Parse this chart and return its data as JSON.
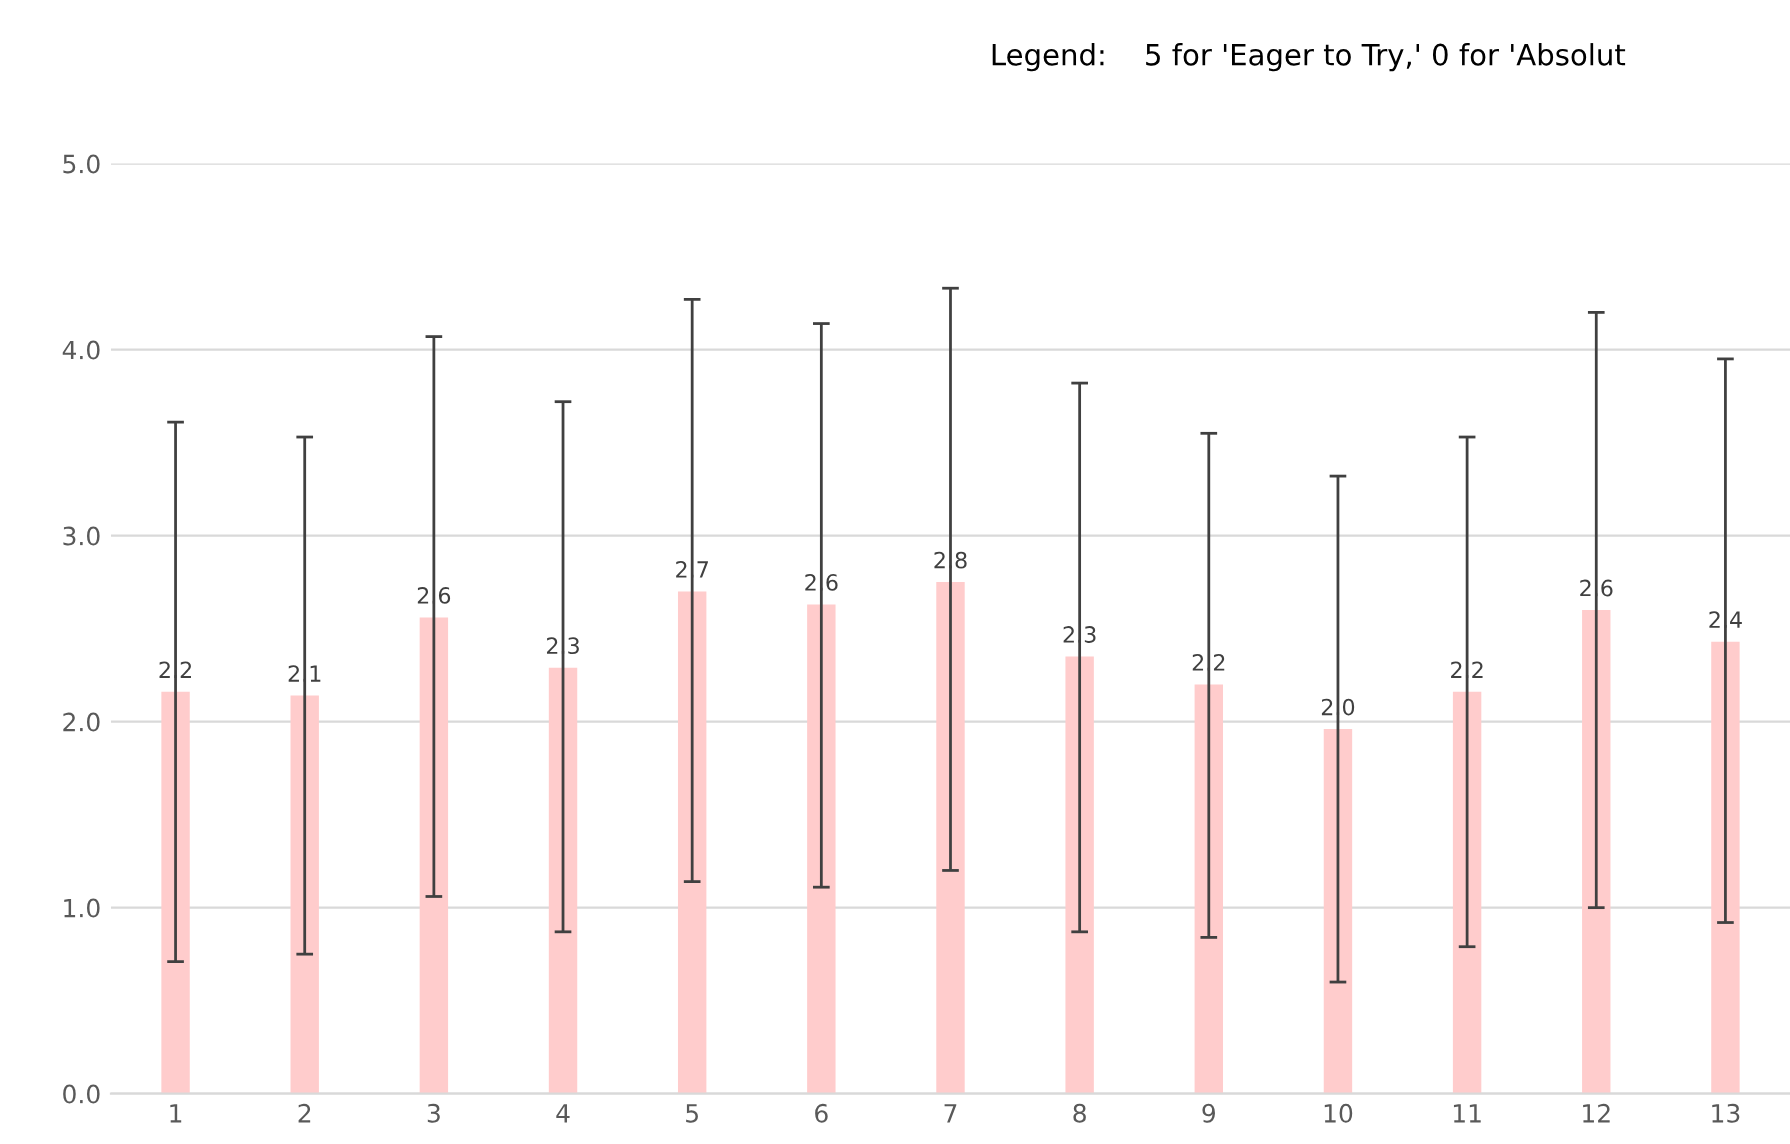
{
  "chart_data": {
    "type": "bar",
    "title": "Legend:    5 for 'Eager to Try,' 0 for 'Absolut",
    "categories": [
      "1",
      "2",
      "3",
      "4",
      "5",
      "6",
      "7",
      "8",
      "9",
      "10",
      "11",
      "12",
      "13"
    ],
    "values": [
      2.16,
      2.14,
      2.56,
      2.29,
      2.7,
      2.63,
      2.75,
      2.35,
      2.2,
      1.96,
      2.16,
      2.6,
      2.43
    ],
    "errors": [
      [
        0.71,
        3.61
      ],
      [
        0.75,
        3.53
      ],
      [
        1.06,
        4.07
      ],
      [
        0.87,
        3.72
      ],
      [
        1.14,
        4.27
      ],
      [
        1.11,
        4.14
      ],
      [
        1.2,
        4.33
      ],
      [
        0.87,
        3.82
      ],
      [
        0.84,
        3.55
      ],
      [
        0.6,
        3.32
      ],
      [
        0.79,
        3.53
      ],
      [
        1.0,
        4.2
      ],
      [
        0.92,
        3.95
      ]
    ],
    "value_labels": [
      "2.2",
      "2.1",
      "2.6",
      "2.3",
      "2.7",
      "2.6",
      "2.8",
      "2.3",
      "2.2",
      "2.0",
      "2.2",
      "2.6",
      "2.4"
    ],
    "color": "#ffcccc",
    "ylim": [
      0,
      5
    ],
    "yticks": [
      {
        "value": 0,
        "label": "0.0"
      },
      {
        "value": 1,
        "label": "1.0"
      },
      {
        "value": 2,
        "label": "2.0"
      },
      {
        "value": 3,
        "label": "3.0"
      },
      {
        "value": 4,
        "label": "4.0"
      },
      {
        "value": 5,
        "label": "5.0"
      }
    ],
    "grid": "y",
    "legend": false
  }
}
